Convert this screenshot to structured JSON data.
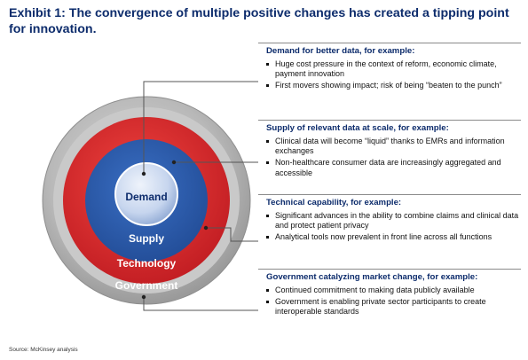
{
  "title": "Exhibit 1: The convergence of multiple positive changes has created a tipping point for innovation.",
  "rings": {
    "demand": "Demand",
    "supply": "Supply",
    "technology": "Technology",
    "government": "Government"
  },
  "colors": {
    "title": "#0d2c6c",
    "government_ring": "#b4b4b4",
    "technology_ring": "#d8262b",
    "supply_ring": "#2c5cac",
    "demand_core": "#c4d4ee"
  },
  "panels": [
    {
      "heading": "Demand for better data, for example:",
      "bullets": [
        "Huge cost pressure in the context of reform, economic climate, payment innovation",
        "First movers showing impact; risk of being “beaten to the punch”"
      ]
    },
    {
      "heading": "Supply of relevant data at scale, for example:",
      "bullets": [
        "Clinical data will become “liquid” thanks to EMRs and information exchanges",
        "Non-healthcare consumer data are increasingly aggregated and accessible"
      ]
    },
    {
      "heading": "Technical capability, for example:",
      "bullets": [
        "Significant advances in the ability to combine claims and clinical data and protect patient privacy",
        "Analytical tools now prevalent in front line across all functions"
      ]
    },
    {
      "heading": "Government catalyzing market change, for example:",
      "bullets": [
        "Continued commitment to making data publicly available",
        "Government is enabling private sector participants to create interoperable standards"
      ]
    }
  ],
  "source": "Source: McKinsey analysis"
}
